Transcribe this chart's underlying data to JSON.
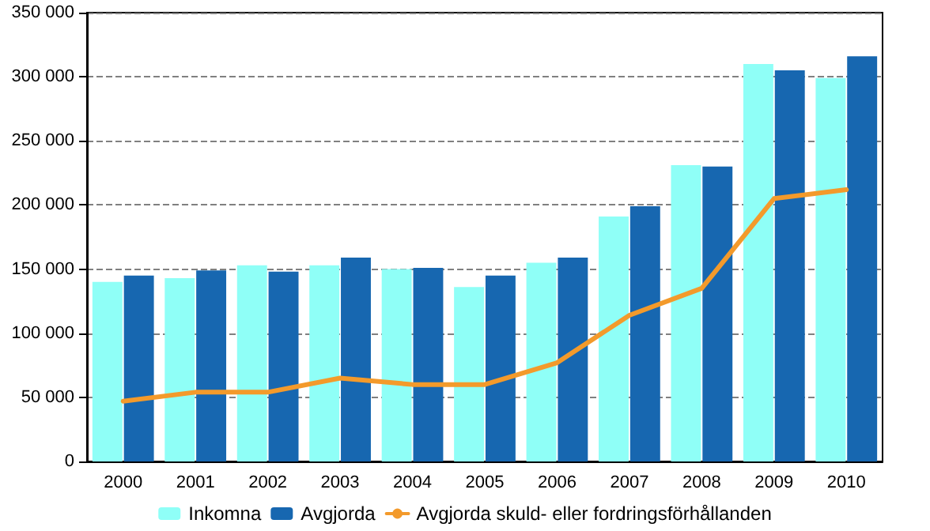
{
  "chart_data": {
    "type": "bar",
    "categories": [
      "2000",
      "2001",
      "2002",
      "2003",
      "2004",
      "2005",
      "2006",
      "2007",
      "2008",
      "2009",
      "2010"
    ],
    "series": [
      {
        "name": "Inkomna",
        "color": "#8ffff7",
        "values": [
          140000,
          143000,
          153000,
          153000,
          150000,
          136000,
          155000,
          191000,
          231000,
          310000,
          299000
        ]
      },
      {
        "name": "Avgjorda",
        "color": "#1767b0",
        "values": [
          145000,
          149000,
          148000,
          159000,
          151000,
          145000,
          159000,
          199000,
          230000,
          305000,
          316000
        ]
      },
      {
        "name": "Avgjorda skuld- eller fordringsförhållanden",
        "type": "line",
        "color": "#f39a2b",
        "marker": "none",
        "values": [
          47000,
          54000,
          54000,
          65000,
          60000,
          60000,
          77000,
          114000,
          135000,
          205000,
          212000
        ]
      }
    ],
    "ylim": [
      0,
      350000
    ],
    "yticks": [
      {
        "value": 0,
        "label": "0"
      },
      {
        "value": 50000,
        "label": "50 000"
      },
      {
        "value": 100000,
        "label": "100 000"
      },
      {
        "value": 150000,
        "label": "150 000"
      },
      {
        "value": 200000,
        "label": "200 000"
      },
      {
        "value": 250000,
        "label": "250 000"
      },
      {
        "value": 300000,
        "label": "300 000"
      },
      {
        "value": 350000,
        "label": "350 000"
      }
    ],
    "grid": "y",
    "legend": "bottom"
  }
}
